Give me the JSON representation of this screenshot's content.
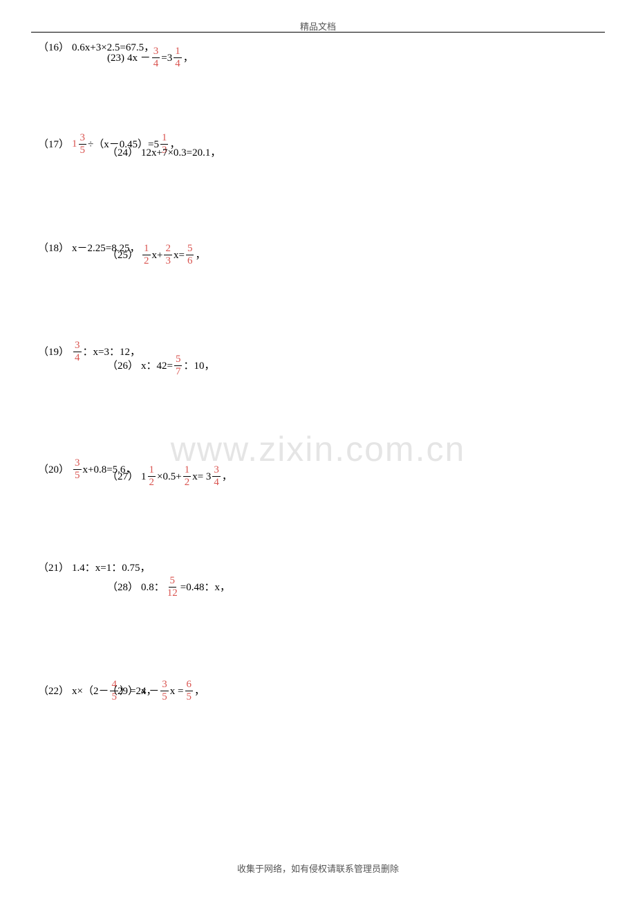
{
  "header": {
    "title": "精品文档"
  },
  "footer": {
    "text": "收集于网络，如有侵权请联系管理员删除"
  },
  "watermark": {
    "text": "www.zixin.com.cn"
  },
  "left_problems": [
    {
      "label": "（16）",
      "parts": [
        "0.6x+3×2.5=67.5，"
      ]
    },
    {
      "label": "（17）",
      "parts": [
        {
          "mixed": "1",
          "n": "3",
          "d": "5"
        },
        "÷（x－0.45）=5",
        {
          "n": "1",
          "d": "3"
        },
        "，"
      ]
    },
    {
      "label": "（18）",
      "parts": [
        "x－2.25=8.25，"
      ]
    },
    {
      "label": "（19）",
      "parts": [
        {
          "n": "3",
          "d": "4"
        },
        "：x=3：12，"
      ]
    },
    {
      "label": "（20）",
      "parts": [
        {
          "n": "3",
          "d": "5"
        },
        "x+0.8=5.6，"
      ]
    },
    {
      "label": "（21）",
      "parts": [
        " 1.4：x=1：0.75，"
      ]
    },
    {
      "label": "（22）",
      "parts": [
        " x×（2－",
        {
          "n": "4",
          "d": "5"
        },
        "）=24，"
      ]
    }
  ],
  "right_problems": [
    {
      "label": "(23)",
      "parts": [
        "  4x －",
        {
          "n": "3",
          "d": "4"
        },
        "=3",
        {
          "n": "1",
          "d": "4"
        },
        "，"
      ]
    },
    {
      "label": "（24）",
      "parts": [
        "12x+7×0.3=20.1，"
      ]
    },
    {
      "label": "（25）",
      "parts": [
        {
          "n": "1",
          "d": "2"
        },
        "x+",
        {
          "n": "2",
          "d": "3"
        },
        "x=",
        {
          "n": "5",
          "d": "6"
        },
        "，"
      ]
    },
    {
      "label": "（26）",
      "parts": [
        "x：42=",
        {
          "n": "5",
          "d": "7"
        },
        "：10，"
      ]
    },
    {
      "label": "（27）",
      "parts": [
        " 1",
        {
          "n": "1",
          "d": "2"
        },
        "×0.5+",
        {
          "n": "1",
          "d": "2"
        },
        "x= 3",
        {
          "n": "3",
          "d": "4"
        },
        "，"
      ]
    },
    {
      "label": "（28）",
      "parts": [
        "0.8：",
        {
          "n": "5",
          "d": "12"
        },
        "=0.48：x，"
      ]
    },
    {
      "label": "（29）",
      "parts": [
        " x －",
        {
          "n": "3",
          "d": "5"
        },
        "x =",
        {
          "n": "6",
          "d": "5"
        },
        "，"
      ]
    }
  ],
  "layout": {
    "left_tops": [
      8,
      140,
      298,
      440,
      610,
      760,
      930
    ],
    "right_tops": [
      15,
      160,
      300,
      460,
      620,
      780,
      930
    ],
    "right_indent": 140
  }
}
